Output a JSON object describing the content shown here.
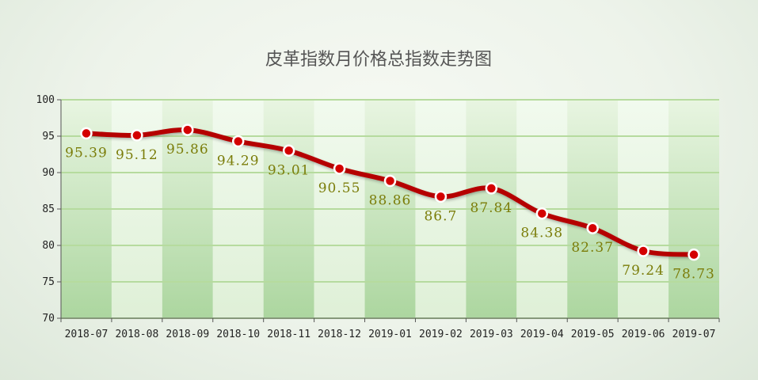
{
  "chart_data": {
    "type": "line",
    "title": "皮革指数月价格总指数走势图",
    "categories": [
      "2018-07",
      "2018-08",
      "2018-09",
      "2018-10",
      "2018-11",
      "2018-12",
      "2019-01",
      "2019-02",
      "2019-03",
      "2019-04",
      "2019-05",
      "2019-06",
      "2019-07"
    ],
    "series": [
      {
        "values": [
          95.39,
          95.12,
          95.86,
          94.29,
          93.01,
          90.55,
          88.86,
          86.7,
          87.84,
          84.38,
          82.37,
          79.24,
          78.73
        ]
      }
    ],
    "data_labels": [
      "95.39",
      "95.12",
      "95.86",
      "94.29",
      "93.01",
      "90.55",
      "88.86",
      "86.7",
      "87.84",
      "84.38",
      "82.37",
      "79.24",
      "78.73"
    ],
    "ylim": [
      70,
      100
    ],
    "yticks": [
      70,
      75,
      80,
      85,
      90,
      95,
      100
    ],
    "grid": true,
    "legend": "none",
    "line_color": "#b50000",
    "marker_color": "#d40000",
    "label_color": "#7b7d0a",
    "band_color_dark": "#b9ddb0",
    "band_color_light": "#e9f6e3",
    "grid_color": "#b6db9e"
  }
}
